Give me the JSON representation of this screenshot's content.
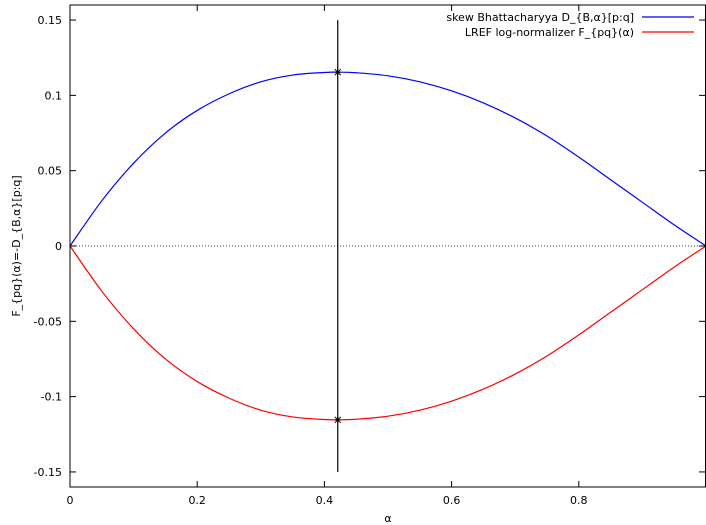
{
  "chart_data": {
    "type": "line",
    "title": "",
    "xlabel": "α",
    "ylabel": "F_{pq}(α)=-D_{B,α}[p:q]",
    "xlim": [
      0,
      1
    ],
    "ylim": [
      -0.16,
      0.16
    ],
    "x_ticks": [
      0,
      0.2,
      0.4,
      0.6,
      0.8
    ],
    "x_tick_labels": [
      "0",
      "0.2",
      "0.4",
      "0.6",
      "0.8"
    ],
    "y_ticks": [
      -0.15,
      -0.1,
      -0.05,
      0,
      0.05,
      0.1,
      0.15
    ],
    "y_tick_labels": [
      "-0.15",
      "-0.1",
      "-0.05",
      "0",
      "0.05",
      "0.1",
      "0.15"
    ],
    "grid": false,
    "legend_position": "top-right",
    "zero_line": true,
    "series": [
      {
        "name": "skew Bhattacharyya D_{B,α}[p:q]",
        "color": "#0000ff",
        "x": [
          0,
          0.05,
          0.1,
          0.15,
          0.2,
          0.25,
          0.3,
          0.35,
          0.4,
          0.421,
          0.45,
          0.5,
          0.55,
          0.6,
          0.65,
          0.7,
          0.75,
          0.8,
          0.85,
          0.9,
          0.95,
          1
        ],
        "y": [
          0,
          0.03,
          0.055,
          0.075,
          0.09,
          0.101,
          0.109,
          0.1135,
          0.1152,
          0.1154,
          0.115,
          0.113,
          0.109,
          0.103,
          0.095,
          0.085,
          0.073,
          0.059,
          0.044,
          0.029,
          0.014,
          0
        ]
      },
      {
        "name": "LREF log-normalizer F_{pq}(α)",
        "color": "#ff0000",
        "x": [
          0,
          0.05,
          0.1,
          0.15,
          0.2,
          0.25,
          0.3,
          0.35,
          0.4,
          0.421,
          0.45,
          0.5,
          0.55,
          0.6,
          0.65,
          0.7,
          0.75,
          0.8,
          0.85,
          0.9,
          0.95,
          1
        ],
        "y": [
          0,
          -0.03,
          -0.055,
          -0.075,
          -0.09,
          -0.101,
          -0.109,
          -0.1135,
          -0.1152,
          -0.1154,
          -0.115,
          -0.113,
          -0.109,
          -0.103,
          -0.095,
          -0.085,
          -0.073,
          -0.059,
          -0.044,
          -0.029,
          -0.014,
          0
        ]
      }
    ],
    "vertical_line": {
      "x": 0.421,
      "y_from": -0.15,
      "y_to": 0.15,
      "color": "#000000"
    },
    "markers": [
      {
        "x": 0.421,
        "y": 0.1154
      },
      {
        "x": 0.421,
        "y": -0.1154
      }
    ]
  }
}
